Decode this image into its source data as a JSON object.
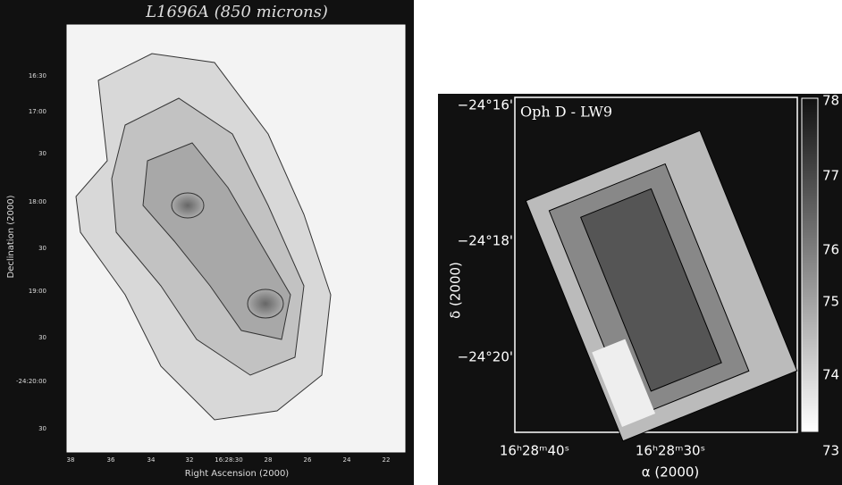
{
  "left_panel": {
    "title": "L1696A (850 microns)",
    "x_label": "Right Ascension (2000)",
    "y_label": "Declination (2000)",
    "x_ticks": [
      "38",
      "36",
      "34",
      "32",
      "16:28:30",
      "28",
      "26",
      "24",
      "22"
    ],
    "y_ticks": [
      "16:30",
      "17:00",
      "30",
      "18:00",
      "30",
      "19:00",
      "30",
      "-24:20:00",
      "30"
    ]
  },
  "right_panel": {
    "label": "Oph D - LW9",
    "x_label": "α (2000)",
    "y_label": "δ (2000)",
    "x_ticks": [
      "16ʰ28ᵐ40ˢ",
      "16ʰ28ᵐ30ˢ"
    ],
    "y_ticks": [
      "−24°16'",
      "−24°18'",
      "−24°20'"
    ],
    "colorbar_ticks": [
      "78",
      "77",
      "76",
      "75",
      "74",
      "73"
    ]
  }
}
